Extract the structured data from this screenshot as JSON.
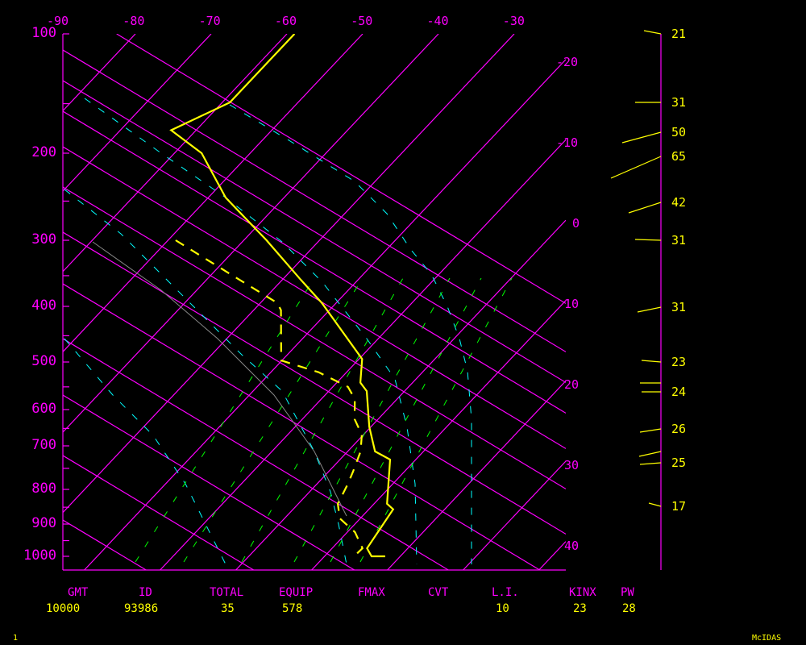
{
  "chart_data": {
    "type": "line",
    "subtype": "skew-T log-p sounding",
    "pressure_ticks": [
      100,
      200,
      300,
      400,
      500,
      600,
      700,
      800,
      900,
      1000
    ],
    "top_temperature_ticks": [
      -90,
      -80,
      -70,
      -60,
      -50,
      -40,
      -30
    ],
    "right_temperature_ticks": [
      -20,
      -10,
      0,
      10,
      20,
      30,
      40
    ],
    "series": [
      {
        "kind": "temperature",
        "style": "solid",
        "color": "#ffff00",
        "points": [
          [
            100,
            -59.0
          ],
          [
            149,
            -59.0
          ],
          [
            175,
            -63.3
          ],
          [
            200,
            -56.4
          ],
          [
            246,
            -47.7
          ],
          [
            300,
            -37.0
          ],
          [
            356,
            -27.6
          ],
          [
            394,
            -21.9
          ],
          [
            494,
            -9.6
          ],
          [
            541,
            -6.9
          ],
          [
            559,
            -5.0
          ],
          [
            646,
            -0.2
          ],
          [
            712,
            3.6
          ],
          [
            730,
            6.6
          ],
          [
            840,
            11.7
          ],
          [
            856,
            13.2
          ],
          [
            974,
            14.6
          ],
          [
            1000,
            16.2
          ],
          [
            1000,
            18.0
          ]
        ]
      },
      {
        "kind": "dewpoint",
        "style": "dashed",
        "color": "#ffff00",
        "points": [
          [
            300,
            -49.0
          ],
          [
            347,
            -37.7
          ],
          [
            394,
            -27.8
          ],
          [
            406,
            -26.4
          ],
          [
            497,
            -20.1
          ],
          [
            520,
            -13.7
          ],
          [
            550,
            -8.0
          ],
          [
            576,
            -5.6
          ],
          [
            625,
            -3.1
          ],
          [
            668,
            -0.2
          ],
          [
            712,
            1.7
          ],
          [
            757,
            3.2
          ],
          [
            788,
            4.1
          ],
          [
            840,
            5.2
          ],
          [
            883,
            7.3
          ],
          [
            924,
            11.0
          ],
          [
            974,
            14.0
          ],
          [
            1000,
            13.9
          ]
        ]
      }
    ],
    "winds": [
      {
        "label": "21",
        "pressure": 100
      },
      {
        "label": "31",
        "pressure": 150
      },
      {
        "label": "50",
        "pressure": 175
      },
      {
        "label": "65",
        "pressure": 200
      },
      {
        "label": "42",
        "pressure": 250
      },
      {
        "label": "31",
        "pressure": 300
      },
      {
        "label": "31",
        "pressure": 400
      },
      {
        "label": "23",
        "pressure": 500
      },
      {
        "label": "",
        "pressure": 545
      },
      {
        "label": "24",
        "pressure": 560
      },
      {
        "label": "26",
        "pressure": 650
      },
      {
        "label": "",
        "pressure": 715
      },
      {
        "label": "25",
        "pressure": 740
      },
      {
        "label": "17",
        "pressure": 850
      }
    ],
    "colors": {
      "grid": "#ff00ff",
      "trace": "#ffff00",
      "moist_adiabat": "#00ffff",
      "mixing_ratio": "#00ff00"
    },
    "grid": true
  },
  "footer": {
    "headers": [
      "GMT",
      "ID",
      "TOTAL",
      "EQUIP",
      "FMAX",
      "CVT",
      "L.I.",
      "KINX",
      "PW"
    ],
    "values": [
      "10000",
      "93986",
      "35",
      "578",
      "",
      "",
      "10",
      "23",
      "28"
    ]
  },
  "frame_number": "1",
  "brand": "McIDAS"
}
